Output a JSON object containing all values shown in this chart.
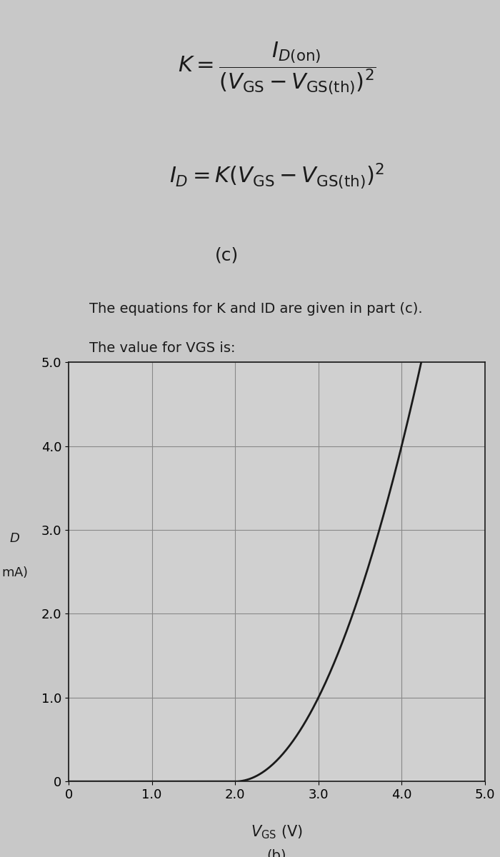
{
  "top_bg_color": "#d9d9d9",
  "bottom_bg_color": "#c8c8c8",
  "eq1_line1": "K = \\frac{I_{D(on)}}{\\left(V_{GS} - V_{GS(th)}\\right)^2}",
  "eq2_line1": "I_D = K\\left(V_{GS} - V_{GS(th)}\\right)^2",
  "label_c": "(c)",
  "text1": "The equations for K and ID are given in part (c).",
  "text2": "The value for VGS is:",
  "xlabel_math": "V_{GS}",
  "xlabel_unit": "(V)",
  "xlabel_label": "(b)",
  "ylabel_D": "D",
  "ylabel_mA": "mA)",
  "xmin": 0,
  "xmax": 5.0,
  "ymin": 0,
  "ymax": 5.0,
  "xticks": [
    0,
    1.0,
    2.0,
    3.0,
    4.0,
    5.0
  ],
  "yticks": [
    0,
    1.0,
    2.0,
    3.0,
    4.0,
    5.0
  ],
  "curve_color": "#1a1a1a",
  "vth": 2.0,
  "K": 1.0,
  "grid_color": "#888888",
  "plot_bg": "#d0d0d0",
  "text_color": "#1a1a1a",
  "top_section_height": 0.46,
  "bottom_section_height": 0.54
}
